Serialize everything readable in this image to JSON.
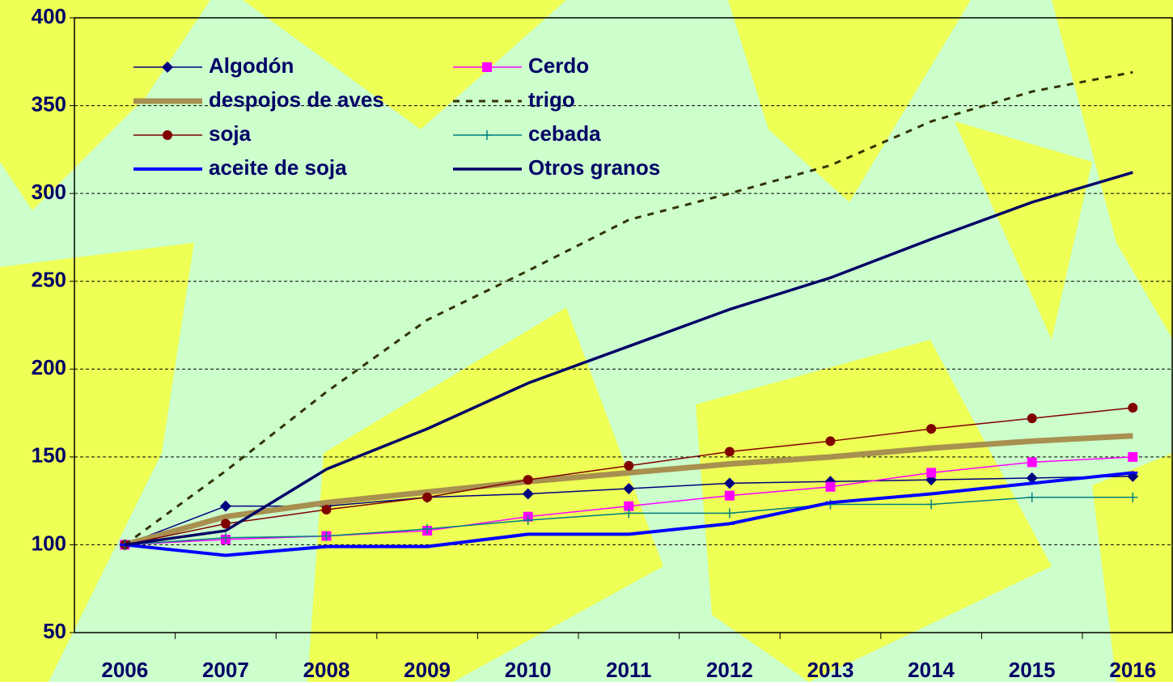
{
  "chart_data": {
    "type": "line",
    "categories": [
      "2006",
      "2007",
      "2008",
      "2009",
      "2010",
      "2011",
      "2012",
      "2013",
      "2014",
      "2015",
      "2016"
    ],
    "ylim": [
      50,
      400
    ],
    "yticks": [
      50,
      100,
      150,
      200,
      250,
      300,
      350,
      400
    ],
    "grid": true,
    "legend": "upper left",
    "series": [
      {
        "name": "Algodón",
        "color": "#000080",
        "marker": "diamond",
        "values": [
          100,
          122,
          122,
          127,
          129,
          132,
          135,
          136,
          137,
          138,
          139
        ]
      },
      {
        "name": "Cerdo",
        "color": "#ff00ff",
        "marker": "square",
        "values": [
          100,
          103,
          105,
          108,
          116,
          122,
          128,
          133,
          141,
          147,
          150
        ]
      },
      {
        "name": "despojos de aves",
        "color": "#a89050",
        "width": 7,
        "values": [
          100,
          116,
          124,
          130,
          136,
          141,
          146,
          150,
          155,
          159,
          162
        ]
      },
      {
        "name": "trigo",
        "color": "#333300",
        "dash": true,
        "width": 3,
        "values": [
          100,
          142,
          187,
          228,
          256,
          285,
          300,
          316,
          341,
          358,
          369
        ]
      },
      {
        "name": "soja",
        "color": "#800000",
        "marker": "circle",
        "values": [
          100,
          112,
          120,
          127,
          137,
          145,
          153,
          159,
          166,
          172,
          178
        ]
      },
      {
        "name": "cebada",
        "color": "#008080",
        "marker": "plus",
        "values": [
          100,
          104,
          105,
          109,
          114,
          118,
          118,
          123,
          123,
          127,
          127
        ]
      },
      {
        "name": "aceite de soja",
        "color": "#0000ff",
        "marker": "dash",
        "width": 4,
        "values": [
          100,
          94,
          99,
          99,
          106,
          106,
          112,
          124,
          129,
          135,
          141
        ]
      },
      {
        "name": "Otros granos",
        "color": "#000066",
        "width": 3.5,
        "values": [
          100,
          108,
          143,
          166,
          192,
          213,
          234,
          252,
          274,
          295,
          312
        ]
      }
    ]
  }
}
